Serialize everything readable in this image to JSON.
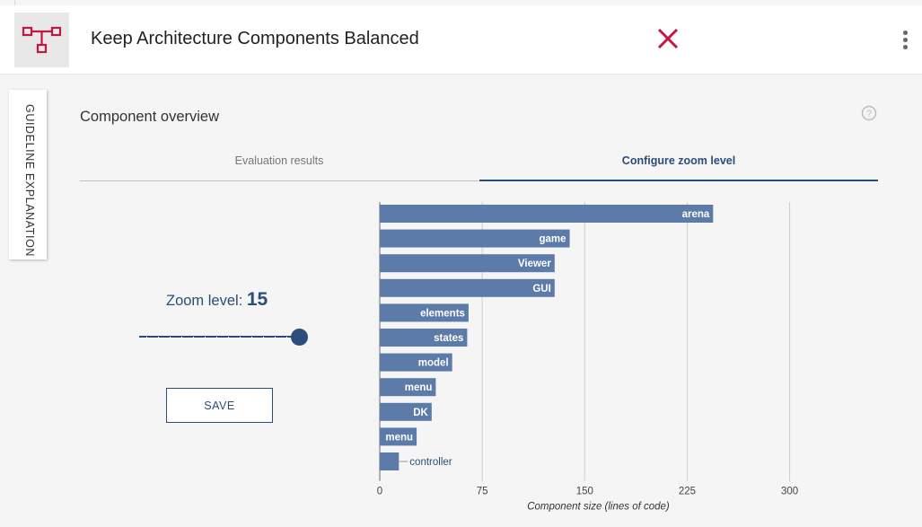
{
  "header": {
    "title": "Keep Architecture Components Balanced",
    "status_icon": "close-icon",
    "status_color": "#c0183f",
    "logo_icon": "component-diagram-icon",
    "menu_icon": "kebab-menu-icon"
  },
  "side_tab": {
    "label": "GUIDELINE EXPLANATION"
  },
  "section": {
    "title": "Component overview",
    "help_icon": "help-icon"
  },
  "tabs": [
    {
      "label": "Evaluation results",
      "active": false
    },
    {
      "label": "Configure zoom level",
      "active": true
    }
  ],
  "zoom": {
    "label": "Zoom level:",
    "value": "15",
    "slider_fraction": 1.0
  },
  "save_label": "SAVE",
  "accent_color": "#2c4d7a",
  "bar_color": "#5d7ba8",
  "chart_data": {
    "type": "bar",
    "orientation": "horizontal",
    "categories": [
      "arena",
      "game",
      "Viewer",
      "GUI",
      "elements",
      "states",
      "model",
      "menu",
      "DK",
      "menu",
      "controller"
    ],
    "values": [
      244,
      139,
      128,
      128,
      65,
      64,
      53,
      41,
      38,
      27,
      14
    ],
    "xlabel": "Component size (lines of code)",
    "ylabel": "",
    "xlim": [
      0,
      320
    ],
    "xticks": [
      0,
      75,
      150,
      225,
      300
    ],
    "grid": true
  }
}
